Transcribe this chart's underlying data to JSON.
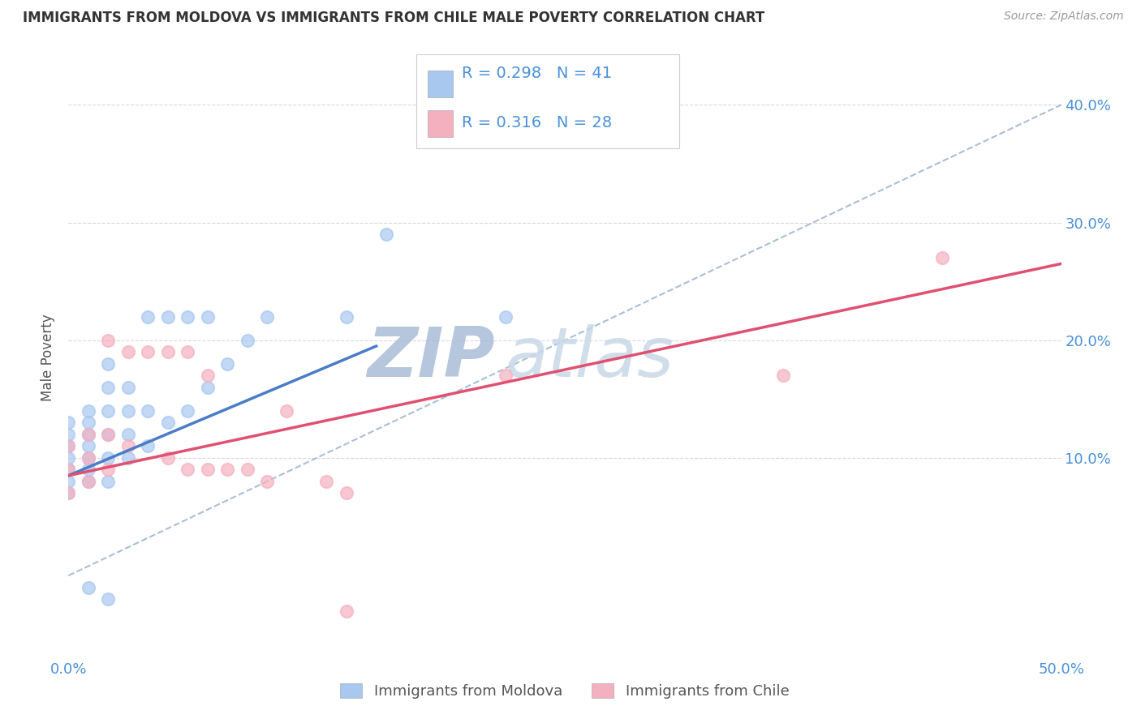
{
  "title": "IMMIGRANTS FROM MOLDOVA VS IMMIGRANTS FROM CHILE MALE POVERTY CORRELATION CHART",
  "source": "Source: ZipAtlas.com",
  "ylabel": "Male Poverty",
  "xlim": [
    0.0,
    0.5
  ],
  "ylim": [
    -0.07,
    0.44
  ],
  "xtick_labels": [
    "0.0%",
    "",
    "",
    "",
    "",
    "50.0%"
  ],
  "xtick_vals": [
    0.0,
    0.1,
    0.2,
    0.3,
    0.4,
    0.5
  ],
  "ytick_labels": [
    "10.0%",
    "20.0%",
    "30.0%",
    "40.0%"
  ],
  "ytick_vals": [
    0.1,
    0.2,
    0.3,
    0.4
  ],
  "moldova_color": "#a8c8f0",
  "chile_color": "#f5b0c0",
  "moldova_line_color": "#4a7cc7",
  "chile_line_color": "#e05070",
  "trend_line_color": "#a0b8d0",
  "R_moldova": 0.298,
  "N_moldova": 41,
  "R_chile": 0.316,
  "N_chile": 28,
  "legend_label_moldova": "Immigrants from Moldova",
  "legend_label_chile": "Immigrants from Chile",
  "watermark_zip": "ZIP",
  "watermark_atlas": "atlas",
  "moldova_x": [
    0.0,
    0.0,
    0.0,
    0.0,
    0.0,
    0.0,
    0.0,
    0.01,
    0.01,
    0.01,
    0.01,
    0.01,
    0.01,
    0.01,
    0.01,
    0.02,
    0.02,
    0.02,
    0.02,
    0.02,
    0.02,
    0.02,
    0.03,
    0.03,
    0.03,
    0.03,
    0.04,
    0.04,
    0.04,
    0.05,
    0.05,
    0.06,
    0.06,
    0.07,
    0.07,
    0.08,
    0.09,
    0.1,
    0.14,
    0.16,
    0.22
  ],
  "moldova_y": [
    0.07,
    0.08,
    0.09,
    0.1,
    0.11,
    0.12,
    0.13,
    0.08,
    0.09,
    0.1,
    0.11,
    0.12,
    0.13,
    0.14,
    -0.01,
    0.08,
    0.1,
    0.12,
    0.14,
    0.16,
    0.18,
    -0.02,
    0.1,
    0.12,
    0.14,
    0.16,
    0.11,
    0.14,
    0.22,
    0.13,
    0.22,
    0.14,
    0.22,
    0.16,
    0.22,
    0.18,
    0.2,
    0.22,
    0.22,
    0.29,
    0.22
  ],
  "chile_x": [
    0.0,
    0.0,
    0.0,
    0.01,
    0.01,
    0.01,
    0.02,
    0.02,
    0.02,
    0.03,
    0.03,
    0.04,
    0.05,
    0.05,
    0.06,
    0.06,
    0.07,
    0.07,
    0.08,
    0.09,
    0.1,
    0.11,
    0.13,
    0.14,
    0.22,
    0.36,
    0.44,
    0.14
  ],
  "chile_y": [
    0.07,
    0.09,
    0.11,
    0.08,
    0.1,
    0.12,
    0.09,
    0.2,
    0.12,
    0.11,
    0.19,
    0.19,
    0.1,
    0.19,
    0.09,
    0.19,
    0.09,
    0.17,
    0.09,
    0.09,
    0.08,
    0.14,
    0.08,
    0.07,
    0.17,
    0.17,
    0.27,
    -0.03
  ],
  "moldova_trend_x": [
    0.0,
    0.155
  ],
  "moldova_trend_y": [
    0.085,
    0.195
  ],
  "chile_trend_x": [
    0.0,
    0.5
  ],
  "chile_trend_y": [
    0.085,
    0.265
  ],
  "dashed_trend_x": [
    0.0,
    0.5
  ],
  "dashed_trend_y": [
    0.0,
    0.4
  ],
  "background_color": "#ffffff",
  "grid_color": "#d8d8d8",
  "title_color": "#333333",
  "axis_label_color": "#555555",
  "tick_label_color": "#4a90d9",
  "legend_r_color": "#4a90d9",
  "watermark_color": "#d0dce8"
}
